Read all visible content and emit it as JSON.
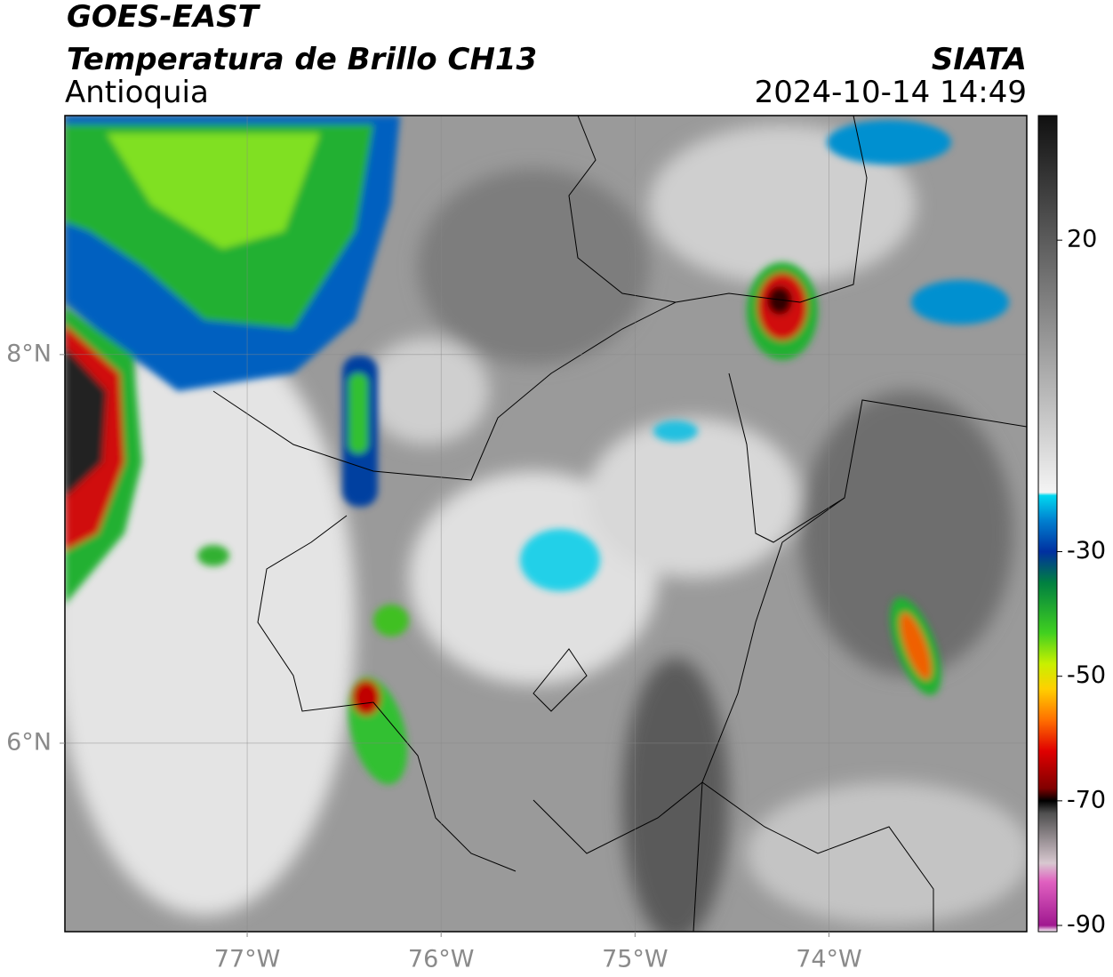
{
  "header": {
    "title": "GOES-EAST",
    "subtitle": "Temperatura de Brillo CH13",
    "region": "Antioquia",
    "source": "SIATA",
    "datetime": "2024-10-14 14:49"
  },
  "map": {
    "xlim": [
      -77.94,
      -72.98
    ],
    "ylim": [
      5.03,
      9.23
    ],
    "xticks": [
      {
        "value": -77,
        "label": "77°W"
      },
      {
        "value": -76,
        "label": "76°W"
      },
      {
        "value": -75,
        "label": "75°W"
      },
      {
        "value": -74,
        "label": "74°W"
      }
    ],
    "yticks": [
      {
        "value": 8,
        "label": "8°N"
      },
      {
        "value": 6,
        "label": "6°N"
      }
    ],
    "grid": true
  },
  "colorbar": {
    "clim": [
      -91,
      40
    ],
    "ticks": [
      20,
      -30,
      -50,
      -70,
      -90
    ],
    "colormap": [
      {
        "value": -91,
        "color": "#ffffff"
      },
      {
        "value": -90,
        "color": "#a01890"
      },
      {
        "value": -83,
        "color": "#e060c0"
      },
      {
        "value": -80,
        "color": "#d8c8d0"
      },
      {
        "value": -72,
        "color": "#505050"
      },
      {
        "value": -70,
        "color": "#000000"
      },
      {
        "value": -68,
        "color": "#800000"
      },
      {
        "value": -62,
        "color": "#e00000"
      },
      {
        "value": -57,
        "color": "#ff7000"
      },
      {
        "value": -52,
        "color": "#ffd000"
      },
      {
        "value": -48,
        "color": "#c8f000"
      },
      {
        "value": -43,
        "color": "#40d020"
      },
      {
        "value": -35,
        "color": "#008040"
      },
      {
        "value": -30,
        "color": "#0030a0"
      },
      {
        "value": -25,
        "color": "#0080d0"
      },
      {
        "value": -21,
        "color": "#00d8f0"
      },
      {
        "value": -20.5,
        "color": "#f4f4f4"
      },
      {
        "value": 40,
        "color": "#101010"
      }
    ]
  }
}
